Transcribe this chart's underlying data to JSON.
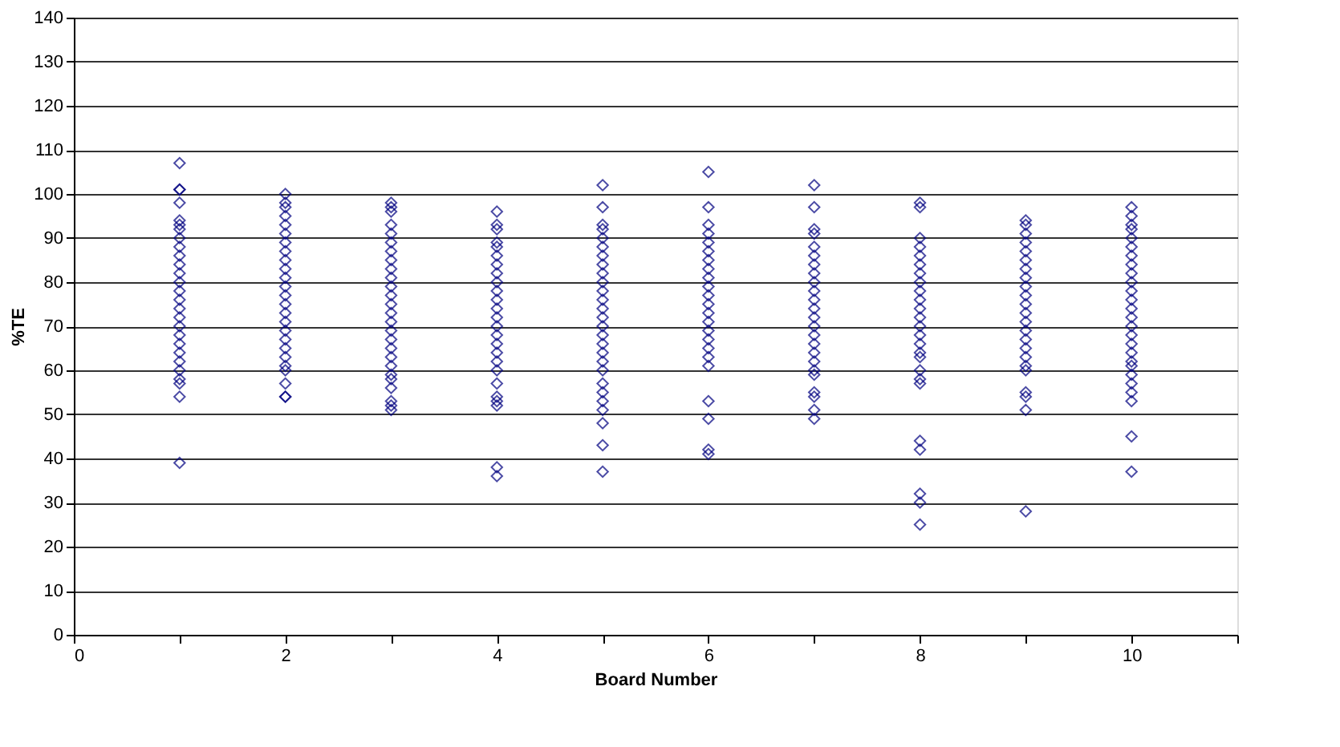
{
  "chart_data": {
    "type": "scatter",
    "xlabel": "Board Number",
    "ylabel": "%TE",
    "xlim": [
      0,
      11
    ],
    "xticks": [
      0,
      {
        "value": 1,
        "label": null
      },
      2,
      {
        "value": 3,
        "label": null
      },
      4,
      {
        "value": 5,
        "label": null
      },
      6,
      {
        "value": 7,
        "label": null
      },
      8,
      {
        "value": 9,
        "label": null
      },
      10,
      {
        "value": 11,
        "label": null
      }
    ],
    "ylim": [
      0,
      140
    ],
    "yticks": [
      0,
      10,
      20,
      30,
      40,
      50,
      60,
      70,
      80,
      90,
      100,
      110,
      120,
      130,
      140
    ],
    "grid": "y",
    "legend": false,
    "marker": "diamond",
    "series": [
      {
        "color": "#000080",
        "x": [
          1,
          1,
          1,
          1,
          1,
          1,
          1,
          1,
          1,
          1,
          1,
          1,
          1,
          1,
          1,
          1,
          1,
          1,
          1,
          1,
          1,
          1,
          1,
          1,
          1,
          1,
          1
        ],
        "values": [
          107,
          101,
          101,
          98,
          94,
          93,
          92,
          90,
          88,
          86,
          84,
          82,
          80,
          78,
          76,
          74,
          72,
          70,
          68,
          66,
          64,
          62,
          60,
          58,
          57,
          54,
          39
        ]
      },
      {
        "color": "#000080",
        "x": [
          2,
          2,
          2,
          2,
          2,
          2,
          2,
          2,
          2,
          2,
          2,
          2,
          2,
          2,
          2,
          2,
          2,
          2,
          2,
          2,
          2,
          2,
          2,
          2,
          2
        ],
        "values": [
          100,
          98,
          97,
          95,
          93,
          91,
          89,
          87,
          85,
          83,
          81,
          79,
          77,
          75,
          73,
          71,
          69,
          67,
          65,
          63,
          61,
          60,
          57,
          54,
          54
        ]
      },
      {
        "color": "#000080",
        "x": [
          3,
          3,
          3,
          3,
          3,
          3,
          3,
          3,
          3,
          3,
          3,
          3,
          3,
          3,
          3,
          3,
          3,
          3,
          3,
          3,
          3,
          3,
          3,
          3,
          3,
          3
        ],
        "values": [
          98,
          97,
          96,
          93,
          91,
          89,
          87,
          85,
          83,
          81,
          79,
          77,
          75,
          73,
          71,
          69,
          67,
          65,
          63,
          61,
          59,
          58,
          56,
          53,
          52,
          51
        ]
      },
      {
        "color": "#000080",
        "x": [
          4,
          4,
          4,
          4,
          4,
          4,
          4,
          4,
          4,
          4,
          4,
          4,
          4,
          4,
          4,
          4,
          4,
          4,
          4,
          4,
          4,
          4,
          4,
          4,
          4
        ],
        "values": [
          96,
          93,
          92,
          89,
          88,
          86,
          84,
          82,
          80,
          78,
          76,
          74,
          72,
          70,
          68,
          66,
          64,
          62,
          60,
          57,
          54,
          53,
          52,
          38,
          36
        ]
      },
      {
        "color": "#000080",
        "x": [
          5,
          5,
          5,
          5,
          5,
          5,
          5,
          5,
          5,
          5,
          5,
          5,
          5,
          5,
          5,
          5,
          5,
          5,
          5,
          5,
          5,
          5,
          5,
          5,
          5,
          5,
          5
        ],
        "values": [
          102,
          97,
          93,
          92,
          90,
          88,
          86,
          84,
          82,
          80,
          78,
          76,
          74,
          72,
          70,
          68,
          66,
          64,
          62,
          60,
          57,
          55,
          53,
          51,
          48,
          43,
          37
        ]
      },
      {
        "color": "#000080",
        "x": [
          6,
          6,
          6,
          6,
          6,
          6,
          6,
          6,
          6,
          6,
          6,
          6,
          6,
          6,
          6,
          6,
          6,
          6,
          6,
          6,
          6,
          6,
          6
        ],
        "values": [
          105,
          97,
          93,
          91,
          89,
          87,
          85,
          83,
          81,
          79,
          77,
          75,
          73,
          71,
          69,
          67,
          65,
          63,
          61,
          53,
          49,
          42,
          41
        ]
      },
      {
        "color": "#000080",
        "x": [
          7,
          7,
          7,
          7,
          7,
          7,
          7,
          7,
          7,
          7,
          7,
          7,
          7,
          7,
          7,
          7,
          7,
          7,
          7,
          7,
          7,
          7,
          7,
          7
        ],
        "values": [
          102,
          97,
          92,
          91,
          88,
          86,
          84,
          82,
          80,
          78,
          76,
          74,
          72,
          70,
          68,
          66,
          64,
          62,
          60,
          59,
          55,
          54,
          51,
          49
        ]
      },
      {
        "color": "#000080",
        "x": [
          8,
          8,
          8,
          8,
          8,
          8,
          8,
          8,
          8,
          8,
          8,
          8,
          8,
          8,
          8,
          8,
          8,
          8,
          8,
          8,
          8,
          8,
          8,
          8,
          8
        ],
        "values": [
          98,
          97,
          90,
          88,
          86,
          84,
          82,
          80,
          78,
          76,
          74,
          72,
          70,
          68,
          66,
          64,
          63,
          60,
          58,
          57,
          44,
          42,
          32,
          30,
          25
        ]
      },
      {
        "color": "#000080",
        "x": [
          9,
          9,
          9,
          9,
          9,
          9,
          9,
          9,
          9,
          9,
          9,
          9,
          9,
          9,
          9,
          9,
          9,
          9,
          9,
          9,
          9,
          9,
          9
        ],
        "values": [
          94,
          93,
          91,
          89,
          87,
          85,
          83,
          81,
          79,
          77,
          75,
          73,
          71,
          69,
          67,
          65,
          63,
          61,
          60,
          55,
          54,
          51,
          28
        ]
      },
      {
        "color": "#000080",
        "x": [
          10,
          10,
          10,
          10,
          10,
          10,
          10,
          10,
          10,
          10,
          10,
          10,
          10,
          10,
          10,
          10,
          10,
          10,
          10,
          10,
          10,
          10,
          10,
          10,
          10,
          10
        ],
        "values": [
          97,
          95,
          93,
          92,
          90,
          88,
          86,
          84,
          82,
          80,
          78,
          76,
          74,
          72,
          70,
          68,
          66,
          64,
          62,
          61,
          59,
          57,
          55,
          53,
          45,
          37
        ]
      }
    ]
  }
}
